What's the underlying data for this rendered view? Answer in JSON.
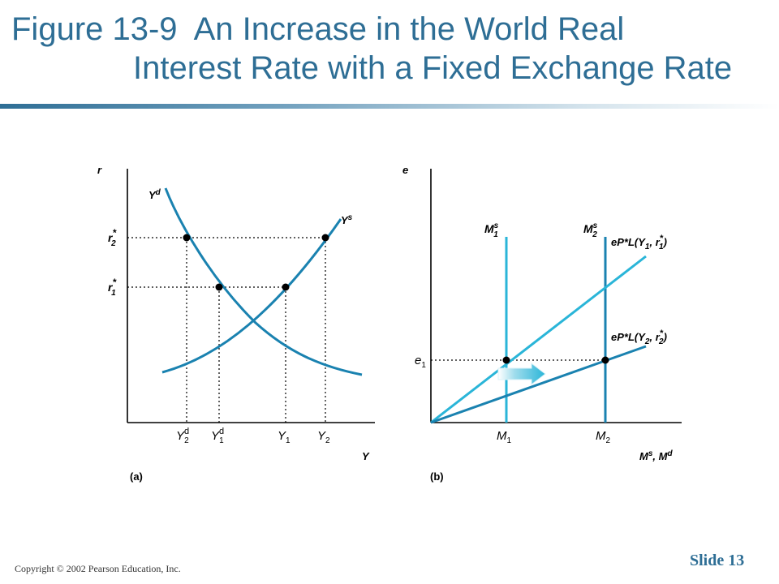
{
  "title": {
    "line1": "Figure 13-9  An Increase in the World Real",
    "line2": "Interest Rate with a Fixed Exchange Rate"
  },
  "panel_a": {
    "y_axis_label": "r",
    "x_axis_label": "Y",
    "caption": "(a)",
    "curve_demand": "Y",
    "curve_demand_sup": "d",
    "curve_supply": "Y",
    "curve_supply_sup": "s",
    "r2_main": "r",
    "r2_sub": "2",
    "r2_sup": "*",
    "r1_main": "r",
    "r1_sub": "1",
    "r1_sup": "*",
    "ticks": {
      "y2d": {
        "main": "Y",
        "sub": "2",
        "sup": "d"
      },
      "y1d": {
        "main": "Y",
        "sub": "1",
        "sup": "d"
      },
      "y1": {
        "main": "Y",
        "sub": "1"
      },
      "y2": {
        "main": "Y",
        "sub": "2"
      }
    }
  },
  "panel_b": {
    "y_axis_label": "e",
    "x_axis_label_a": "M",
    "x_axis_label_a_sup": "s",
    "x_axis_label_sep": ", ",
    "x_axis_label_b": "M",
    "x_axis_label_b_sup": "d",
    "caption": "(b)",
    "ms1": {
      "main": "M",
      "sub": "1",
      "sup": "s"
    },
    "ms2": {
      "main": "M",
      "sub": "2",
      "sup": "s"
    },
    "demand1": {
      "pre": "eP*L(Y",
      "sub1": "1",
      "mid": ", r",
      "sub2": "1",
      "sup2": "*",
      "post": ")"
    },
    "demand2": {
      "pre": "eP*L(Y",
      "sub1": "2",
      "mid": ", r",
      "sub2": "2",
      "sup2": "*",
      "post": ")"
    },
    "e1": {
      "main": "e",
      "sub": "1"
    },
    "m1": {
      "main": "M",
      "sub": "1"
    },
    "m2": {
      "main": "M",
      "sub": "2"
    }
  },
  "colors": {
    "title": "#2e6e95",
    "curve_dark": "#1a82b0",
    "curve_light": "#2ab5d8",
    "arrow": "#2ab5d8"
  },
  "footer": {
    "copyright": "Copyright © 2002 Pearson Education, Inc.",
    "slide": "Slide 13"
  }
}
